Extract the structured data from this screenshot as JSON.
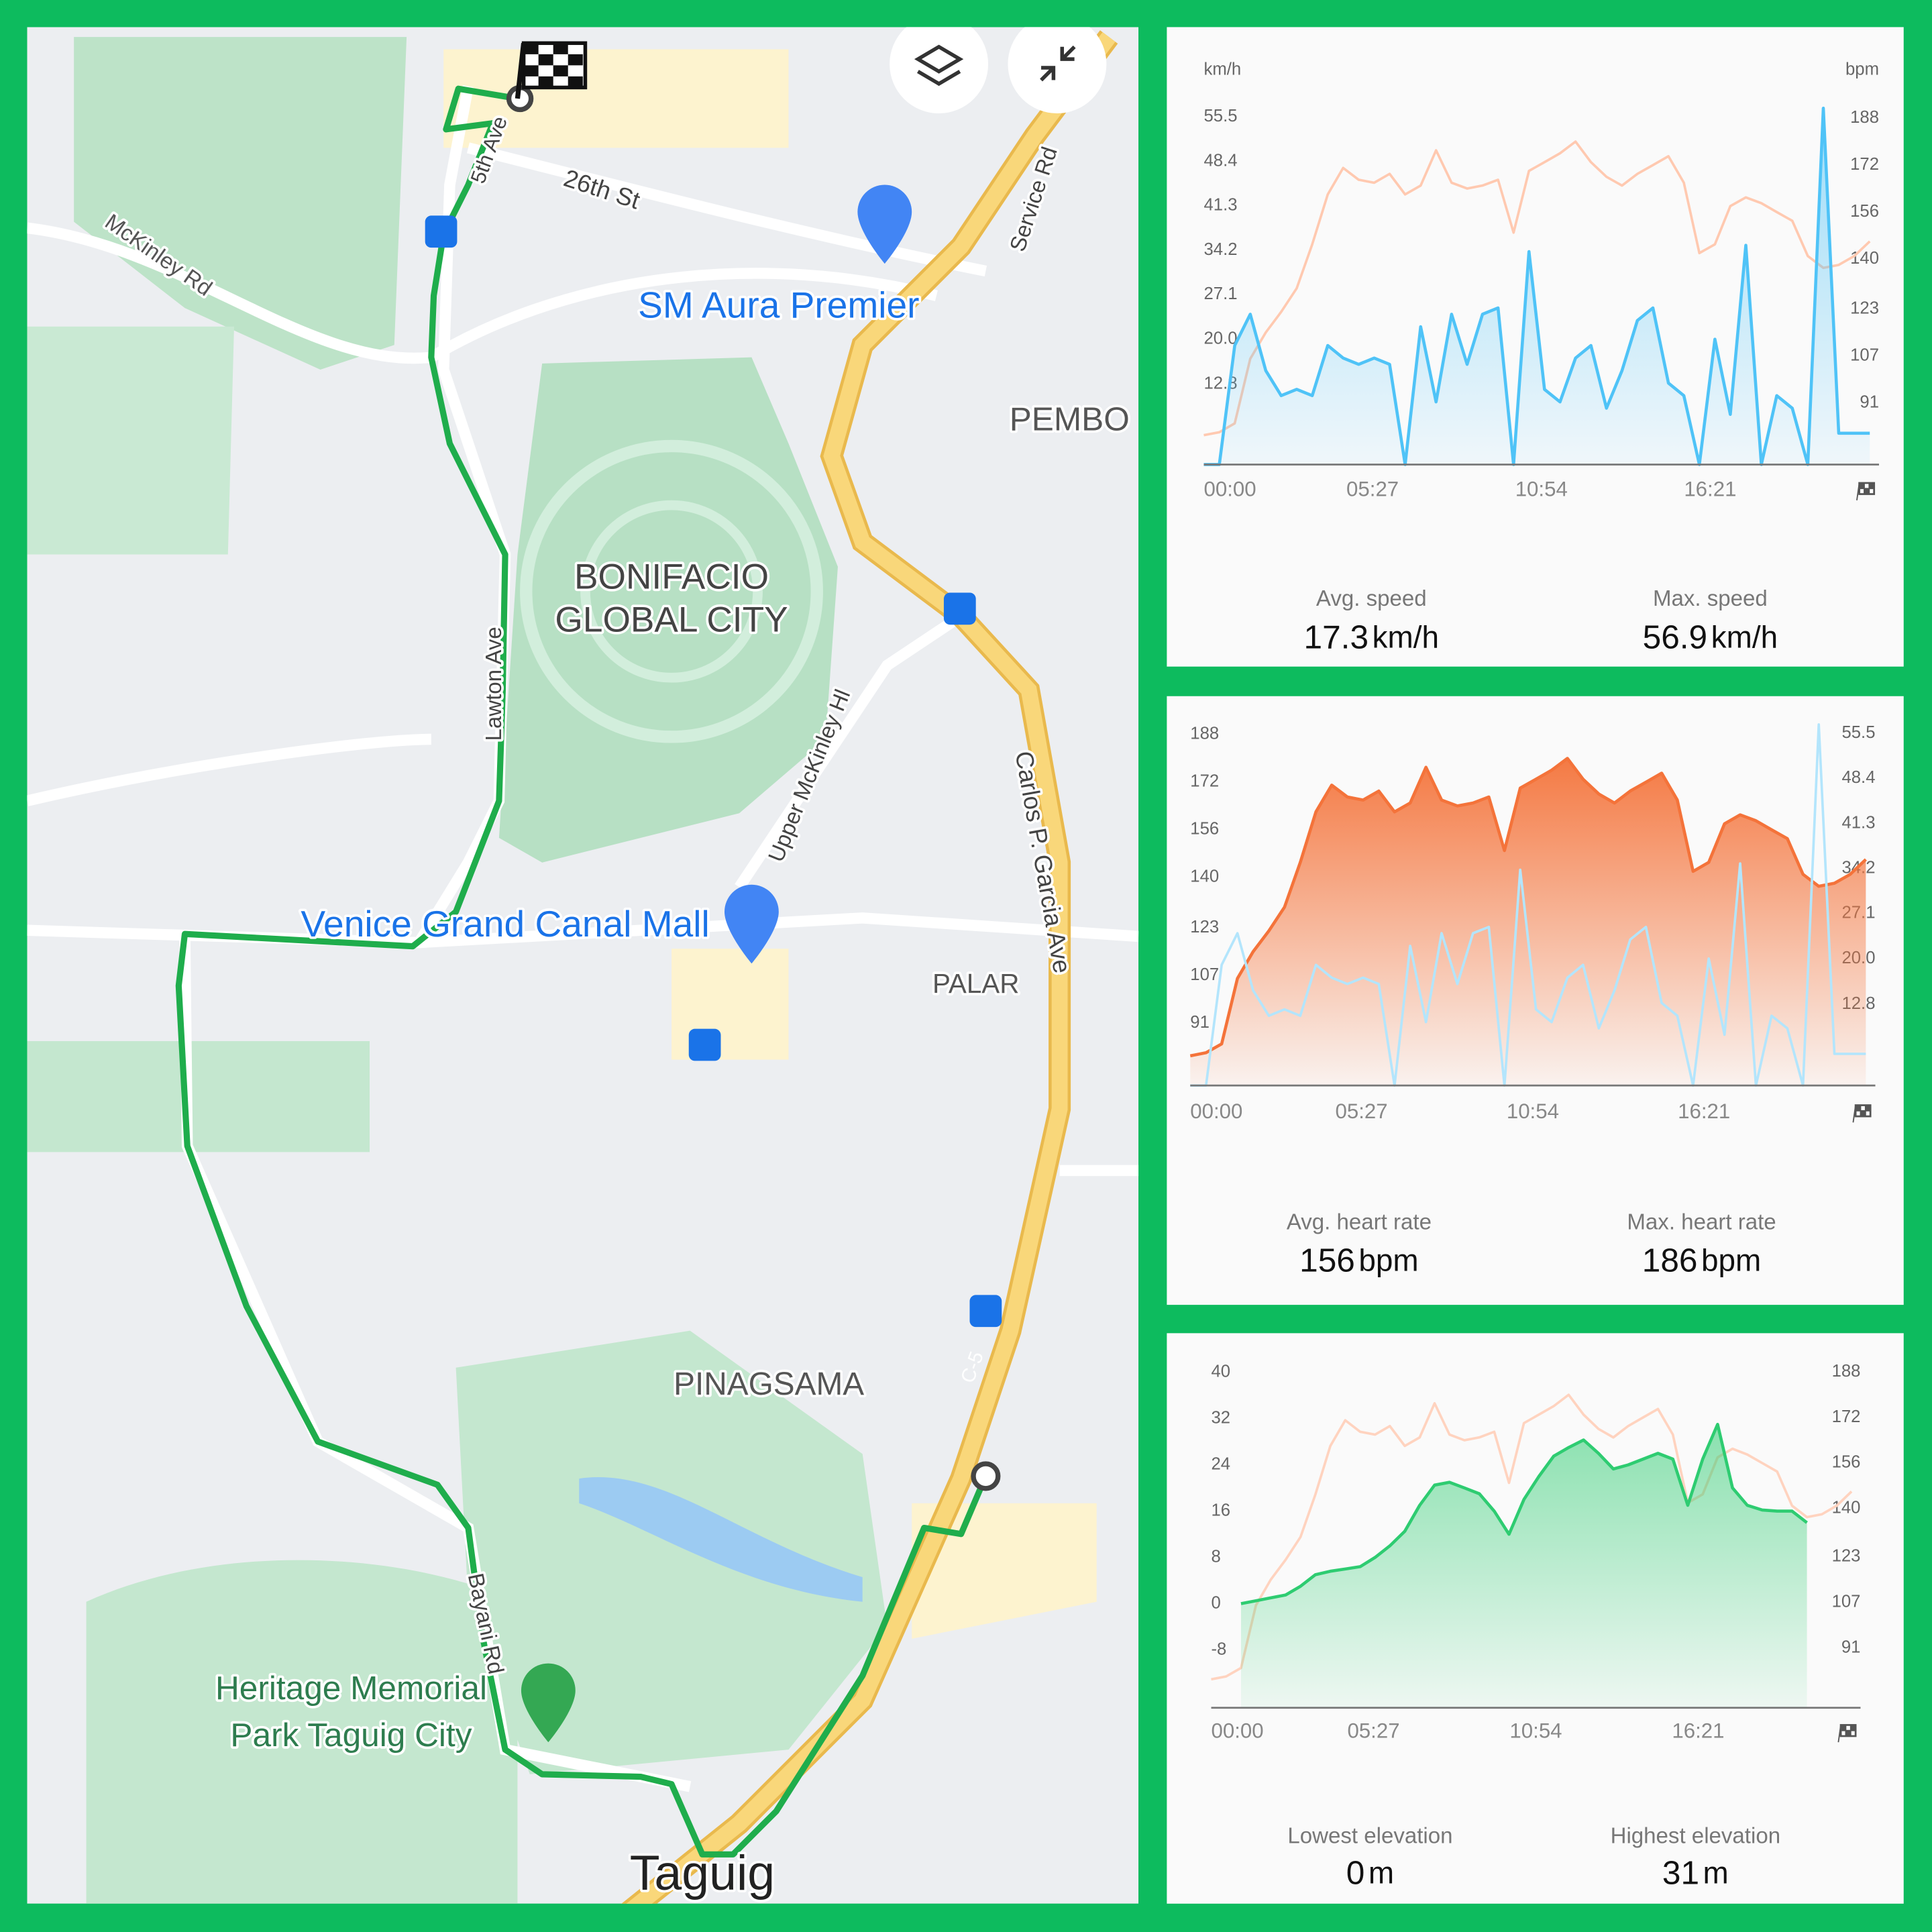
{
  "map": {
    "labels": [
      "McKinley Rd",
      "5th Ave",
      "26th St",
      "Service Rd",
      "SM Aura Premier",
      "PEMBO",
      "BONIFACIO",
      "GLOBAL CITY",
      "Lawton Ave",
      "Upper McKinley Hl",
      "Carlos P. Garcia Ave",
      "Venice Grand Canal Mall",
      "PALAR",
      "PINAGSAMA",
      "Bayani Rd",
      "Heritage Memorial",
      "Park Taguig City",
      "Taguig",
      "C-5"
    ]
  },
  "chart_data": [
    {
      "type": "line",
      "y_label": "km/h",
      "y2_label": "bpm",
      "x": [
        0,
        0.5,
        1,
        1.5,
        2,
        2.5,
        3,
        3.5,
        4,
        4.5,
        5,
        5.5,
        6,
        6.5,
        7,
        7.5,
        8,
        8.5,
        9,
        9.5,
        10,
        10.5,
        11,
        11.5,
        12,
        12.5,
        13,
        13.5,
        14,
        14.5,
        15,
        15.5,
        16,
        16.5,
        17,
        17.5,
        18,
        18.5,
        19,
        19.5,
        20,
        20.5,
        21,
        21.5
      ],
      "xlim": [
        0,
        21.8
      ],
      "xticks": [
        {
          "value": 0,
          "label": "00:00"
        },
        {
          "value": 5.45,
          "label": "05:27"
        },
        {
          "value": 10.9,
          "label": "10:54"
        },
        {
          "value": 16.35,
          "label": "16:21"
        }
      ],
      "ylim": [
        0,
        60
      ],
      "yticks": [
        12.8,
        {
          "value": 20,
          "label": "20.0"
        },
        27.1,
        34.2,
        41.3,
        48.4,
        55.5
      ],
      "y2lim": [
        70,
        198
      ],
      "y2ticks": [
        91,
        107,
        123,
        140,
        156,
        172,
        188
      ],
      "series": [
        {
          "color": "#ffc9b0",
          "axis": "y2",
          "values": [
            80,
            81,
            84,
            106,
            115,
            122,
            130,
            145,
            162,
            171,
            167,
            166,
            169,
            162,
            165,
            177,
            166,
            164,
            165,
            167,
            149,
            170,
            173,
            176,
            180,
            173,
            168,
            165,
            169,
            172,
            175,
            166,
            142,
            145,
            158,
            161,
            159,
            156,
            153,
            141,
            137,
            138,
            141,
            146
          ]
        },
        {
          "color": "#4fc3f7",
          "fill": true,
          "values": [
            0,
            0,
            19,
            24,
            15,
            11,
            12,
            11,
            19,
            17,
            16,
            17,
            16,
            0,
            22,
            10,
            24,
            16,
            24,
            25,
            0,
            34,
            12,
            10,
            17,
            19,
            9,
            15,
            23,
            25,
            13,
            11,
            0,
            20,
            8,
            35,
            0,
            11,
            9,
            0,
            56.9,
            5,
            5,
            5
          ]
        }
      ],
      "stats": [
        {
          "label": "Avg. speed",
          "value": 17.3,
          "unit": "km/h"
        },
        {
          "label": "Max. speed",
          "value": 56.9,
          "unit": "km/h"
        }
      ]
    },
    {
      "type": "line",
      "x": [
        0,
        0.5,
        1,
        1.5,
        2,
        2.5,
        3,
        3.5,
        4,
        4.5,
        5,
        5.5,
        6,
        6.5,
        7,
        7.5,
        8,
        8.5,
        9,
        9.5,
        10,
        10.5,
        11,
        11.5,
        12,
        12.5,
        13,
        13.5,
        14,
        14.5,
        15,
        15.5,
        16,
        16.5,
        17,
        17.5,
        18,
        18.5,
        19,
        19.5,
        20,
        20.5,
        21,
        21.5
      ],
      "xlim": [
        0,
        21.8
      ],
      "xticks": [
        {
          "value": 0,
          "label": "00:00"
        },
        {
          "value": 5.45,
          "label": "05:27"
        },
        {
          "value": 10.9,
          "label": "10:54"
        },
        {
          "value": 16.35,
          "label": "16:21"
        }
      ],
      "ylim": [
        70,
        198
      ],
      "yticks": [
        91,
        107,
        123,
        140,
        156,
        172,
        188
      ],
      "y2lim": [
        0,
        60
      ],
      "y2ticks": [
        12.8,
        {
          "value": 20,
          "label": "20.0"
        },
        27.1,
        34.2,
        41.3,
        48.4,
        55.5
      ],
      "series": [
        {
          "color": "#f4733a",
          "fill": true,
          "values": [
            80,
            81,
            84,
            106,
            115,
            122,
            130,
            145,
            162,
            171,
            167,
            166,
            169,
            162,
            165,
            177,
            166,
            164,
            165,
            167,
            149,
            170,
            173,
            176,
            180,
            173,
            168,
            165,
            169,
            172,
            175,
            166,
            142,
            145,
            158,
            161,
            159,
            156,
            153,
            141,
            137,
            138,
            141,
            146
          ]
        },
        {
          "color": "#b3e5fc",
          "axis": "y2",
          "values": [
            0,
            0,
            19,
            24,
            15,
            11,
            12,
            11,
            19,
            17,
            16,
            17,
            16,
            0,
            22,
            10,
            24,
            16,
            24,
            25,
            0,
            34,
            12,
            10,
            17,
            19,
            9,
            15,
            23,
            25,
            13,
            11,
            0,
            20,
            8,
            35,
            0,
            11,
            9,
            0,
            56.9,
            5,
            5,
            5
          ]
        }
      ],
      "stats": [
        {
          "label": "Avg. heart rate",
          "value": 156,
          "unit": "bpm"
        },
        {
          "label": "Max. heart rate",
          "value": 186,
          "unit": "bpm"
        }
      ]
    },
    {
      "type": "line",
      "x": [
        0,
        0.5,
        1,
        1.5,
        2,
        2.5,
        3,
        3.5,
        4,
        4.5,
        5,
        5.5,
        6,
        6.5,
        7,
        7.5,
        8,
        8.5,
        9,
        9.5,
        10,
        10.5,
        11,
        11.5,
        12,
        12.5,
        13,
        13.5,
        14,
        14.5,
        15,
        15.5,
        16,
        16.5,
        17,
        17.5,
        18,
        18.5,
        19,
        19.5,
        20,
        20.5,
        21,
        21.5
      ],
      "xlim": [
        0,
        21.8
      ],
      "xticks": [
        {
          "value": 0,
          "label": "00:00"
        },
        {
          "value": 5.45,
          "label": "05:27"
        },
        {
          "value": 10.9,
          "label": "10:54"
        },
        {
          "value": 16.35,
          "label": "16:21"
        }
      ],
      "ylim": [
        -18,
        44
      ],
      "yticks": [
        -8,
        0,
        8,
        16,
        24,
        32,
        40
      ],
      "y2lim": [
        70,
        196
      ],
      "y2ticks": [
        91,
        107,
        123,
        140,
        156,
        172,
        188
      ],
      "series": [
        {
          "color": "#ffd3bf",
          "axis": "y2",
          "values": [
            80,
            81,
            84,
            106,
            115,
            122,
            130,
            145,
            162,
            171,
            167,
            166,
            169,
            162,
            165,
            177,
            166,
            164,
            165,
            167,
            149,
            170,
            173,
            176,
            180,
            173,
            168,
            165,
            169,
            172,
            175,
            166,
            142,
            145,
            158,
            161,
            159,
            156,
            153,
            141,
            137,
            138,
            141,
            146
          ]
        },
        {
          "color": "#2ecc71",
          "fill": true,
          "values": [
            null,
            null,
            0,
            0.5,
            1,
            1.5,
            3,
            5,
            5.6,
            6,
            6.4,
            8,
            10,
            12.5,
            17,
            20.5,
            21,
            20,
            19,
            16,
            12,
            18,
            22,
            25.5,
            27,
            28.3,
            26,
            23.3,
            24,
            25,
            26,
            25,
            17,
            25,
            31,
            20,
            17,
            16.2,
            16,
            16,
            14,
            null,
            null,
            null
          ]
        }
      ],
      "stats": [
        {
          "label": "Lowest elevation",
          "value": 0,
          "unit": "m"
        },
        {
          "label": "Highest elevation",
          "value": 31,
          "unit": "m"
        }
      ]
    }
  ]
}
